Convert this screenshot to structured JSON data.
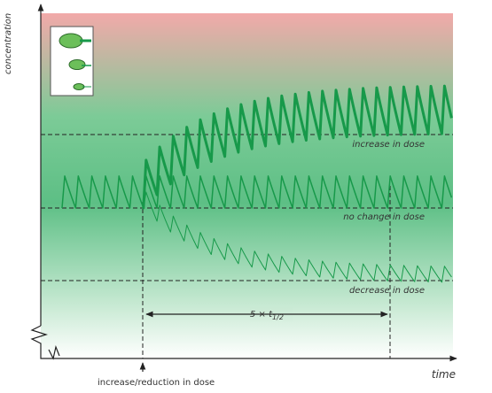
{
  "axes": {
    "y_label": "concentration",
    "x_label": "time"
  },
  "levels": [
    "increase in dose",
    "no change in dose",
    "decrease in dose"
  ],
  "interval_label": {
    "text": "5 × t",
    "subscript": "1/2"
  },
  "event_label": "increase/reduction in dose"
}
